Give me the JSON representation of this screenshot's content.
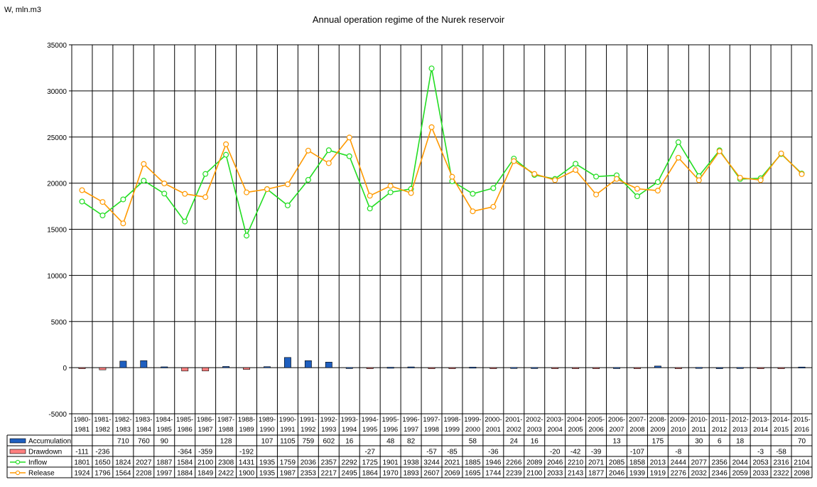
{
  "chart_data": {
    "type": "line",
    "title": "Annual operation regime of the Nurek reservoir",
    "ylabel": "W, mln.m3",
    "xlabel": "",
    "ylim": [
      -5000,
      35000
    ],
    "yticks": [
      -5000,
      0,
      5000,
      10000,
      15000,
      20000,
      25000,
      30000,
      35000
    ],
    "grid": true,
    "legend": "table-left",
    "categories": [
      [
        "1980-",
        "1981"
      ],
      [
        "1981-",
        "1982"
      ],
      [
        "1982-",
        "1983"
      ],
      [
        "1983-",
        "1984"
      ],
      [
        "1984-",
        "1985"
      ],
      [
        "1985-",
        "1986"
      ],
      [
        "1986-",
        "1987"
      ],
      [
        "1987-",
        "1988"
      ],
      [
        "1988-",
        "1989"
      ],
      [
        "1989-",
        "1990"
      ],
      [
        "1990-",
        "1991"
      ],
      [
        "1991-",
        "1992"
      ],
      [
        "1992-",
        "1993"
      ],
      [
        "1993-",
        "1994"
      ],
      [
        "1994-",
        "1995"
      ],
      [
        "1995-",
        "1996"
      ],
      [
        "1996-",
        "1997"
      ],
      [
        "1997-",
        "1998"
      ],
      [
        "1998-",
        "1999"
      ],
      [
        "1999-",
        "2000"
      ],
      [
        "2000-",
        "2001"
      ],
      [
        "2001-",
        "2002"
      ],
      [
        "2002-",
        "2003"
      ],
      [
        "2003-",
        "2004"
      ],
      [
        "2004-",
        "2005"
      ],
      [
        "2005-",
        "2006"
      ],
      [
        "2006-",
        "2007"
      ],
      [
        "2007-",
        "2008"
      ],
      [
        "2008-",
        "2009"
      ],
      [
        "2009-",
        "2010"
      ],
      [
        "2010-",
        "2011"
      ],
      [
        "2011-",
        "2012"
      ],
      [
        "2012-",
        "2013"
      ],
      [
        "2013-",
        "2014"
      ],
      [
        "2014-",
        "2015"
      ],
      [
        "2015-",
        "2016"
      ]
    ],
    "series": [
      {
        "name": "Accumulation",
        "kind": "bar",
        "color": "#1f5fbf",
        "scale": 1,
        "values": [
          null,
          null,
          710,
          760,
          90,
          null,
          null,
          128,
          null,
          107,
          1105,
          759,
          602,
          16,
          null,
          48,
          82,
          null,
          null,
          58,
          null,
          24,
          16,
          null,
          null,
          null,
          13,
          null,
          175,
          null,
          30,
          6,
          18,
          null,
          null,
          70
        ]
      },
      {
        "name": "Drawdown",
        "kind": "bar",
        "color": "#ff8080",
        "scale": 1,
        "values": [
          -111,
          -236,
          null,
          null,
          null,
          -364,
          -359,
          null,
          -192,
          null,
          null,
          null,
          null,
          null,
          -27,
          null,
          null,
          -57,
          -85,
          null,
          -36,
          null,
          null,
          -20,
          -42,
          -39,
          null,
          -107,
          null,
          -8,
          null,
          null,
          null,
          -3,
          -58,
          null
        ]
      },
      {
        "name": "Inflow",
        "kind": "line",
        "color": "#22dd22",
        "scale": 10,
        "values": [
          1801,
          1650,
          1824,
          2027,
          1887,
          1584,
          2100,
          2308,
          1431,
          1935,
          1759,
          2036,
          2357,
          2292,
          1725,
          1901,
          1938,
          3244,
          2021,
          1885,
          1946,
          2266,
          2089,
          2046,
          2210,
          2071,
          2085,
          1858,
          2013,
          2444,
          2077,
          2356,
          2044,
          2053,
          2316,
          2104
        ]
      },
      {
        "name": "Release",
        "kind": "line",
        "color": "#ff9900",
        "scale": 10,
        "values": [
          1924,
          1796,
          1564,
          2208,
          1997,
          1884,
          1849,
          2422,
          1900,
          1935,
          1987,
          2353,
          2217,
          2495,
          1864,
          1970,
          1893,
          2607,
          2069,
          1695,
          1744,
          2239,
          2100,
          2033,
          2143,
          1877,
          2046,
          1939,
          1919,
          2276,
          2032,
          2346,
          2059,
          2033,
          2322,
          2098
        ]
      }
    ]
  }
}
